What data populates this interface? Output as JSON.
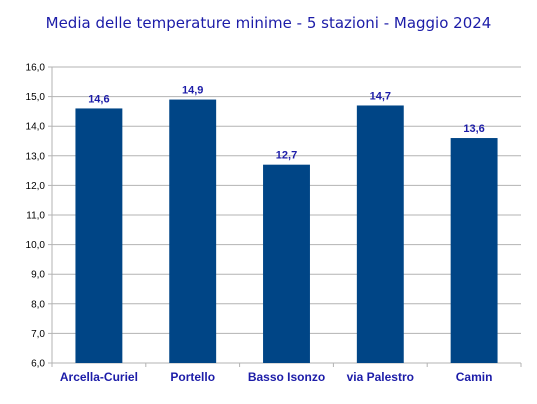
{
  "chart_data": {
    "type": "bar",
    "title": "Media delle temperature minime - 5 stazioni - Maggio 2024",
    "xlabel": "",
    "ylabel": "",
    "categories": [
      "Arcella-Curiel",
      "Portello",
      "Basso Isonzo",
      "via Palestro",
      "Camin"
    ],
    "values": [
      14.6,
      14.9,
      12.7,
      14.7,
      13.6
    ],
    "data_labels": [
      "14,6",
      "14,9",
      "12,7",
      "14,7",
      "13,6"
    ],
    "ylim": [
      6.0,
      16.0
    ],
    "y_ticks": [
      "6,0",
      "7,0",
      "8,0",
      "9,0",
      "10,0",
      "11,0",
      "12,0",
      "13,0",
      "14,0",
      "15,0",
      "16,0"
    ],
    "grid": true,
    "legend": "none",
    "colors": {
      "bar": "#004586",
      "title": "#1c1ca8",
      "labels": "#1c1ca8",
      "grid": "#b3b3b3",
      "axis": "#b3b3b3"
    }
  }
}
